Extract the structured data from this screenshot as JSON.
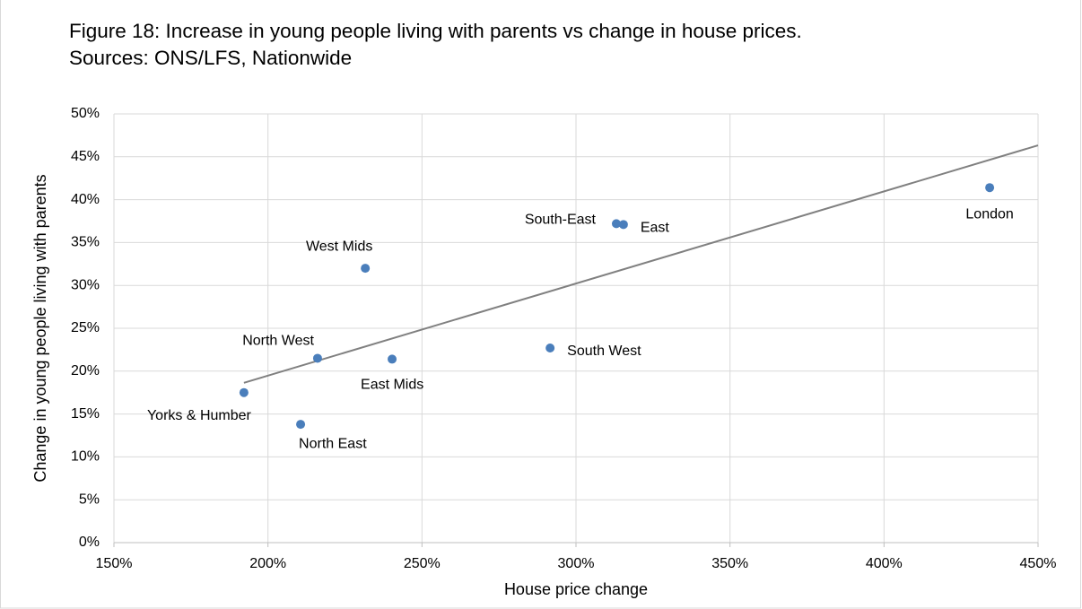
{
  "chart_data": {
    "type": "scatter",
    "title": "Figure 18: Increase in young people living with parents vs change in house prices. Sources: ONS/LFS, Nationwide",
    "x_label": "House price change",
    "y_label": "Change in young people living with parents",
    "point_labels": [
      "Yorks & Humber",
      "North East",
      "North West",
      "West Mids",
      "East Mids",
      "South West",
      "South-East",
      "East",
      "London"
    ],
    "x": [
      192.2,
      210.6,
      216.1,
      231.6,
      240.3,
      291.6,
      313.1,
      315.4,
      434.3
    ],
    "values": [
      17.5,
      13.8,
      21.5,
      32.0,
      21.4,
      22.7,
      37.2,
      37.1,
      41.4
    ],
    "color": "#4a7ebb",
    "trendline": true,
    "trendline_color": "#808080",
    "grid": true,
    "xlim": [
      150,
      450
    ],
    "xticks": [
      {
        "value": 150,
        "label": "150%"
      },
      {
        "value": 200,
        "label": "200%"
      },
      {
        "value": 250,
        "label": "250%"
      },
      {
        "value": 300,
        "label": "300%"
      },
      {
        "value": 350,
        "label": "350%"
      },
      {
        "value": 400,
        "label": "400%"
      },
      {
        "value": 450,
        "label": "450%"
      }
    ],
    "ylim": [
      0,
      50
    ],
    "yticks": [
      {
        "value": 0,
        "label": "0%"
      },
      {
        "value": 5,
        "label": "5%"
      },
      {
        "value": 10,
        "label": "10%"
      },
      {
        "value": 15,
        "label": "15%"
      },
      {
        "value": 20,
        "label": "20%"
      },
      {
        "value": 25,
        "label": "25%"
      },
      {
        "value": 30,
        "label": "30%"
      },
      {
        "value": 35,
        "label": "35%"
      },
      {
        "value": 40,
        "label": "40%"
      },
      {
        "value": 45,
        "label": "45%"
      },
      {
        "value": 50,
        "label": "50%"
      }
    ]
  }
}
